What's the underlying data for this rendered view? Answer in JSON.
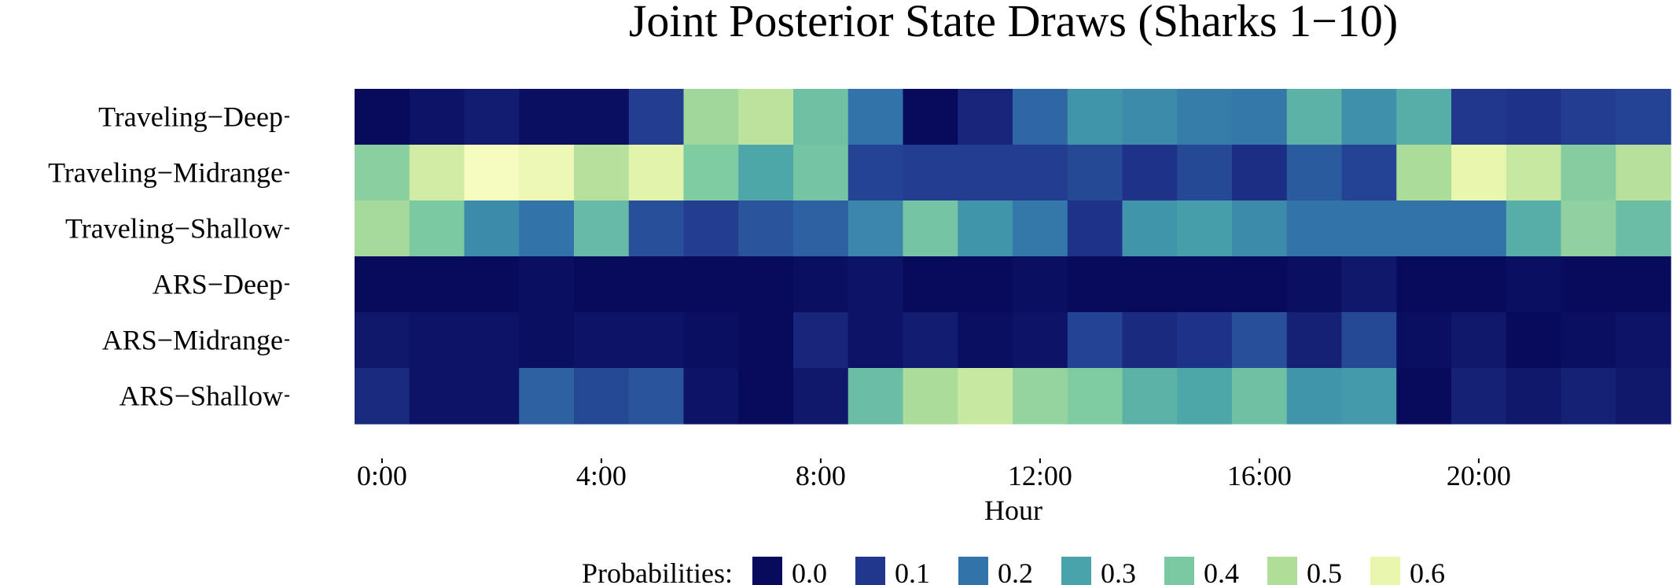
{
  "chart_data": {
    "type": "heatmap",
    "title": "Joint Posterior State Draws (Sharks 1−10)",
    "xlabel": "Hour",
    "ylabel": "",
    "rows": [
      "Traveling−Deep",
      "Traveling−Midrange",
      "Traveling−Shallow",
      "ARS−Deep",
      "ARS−Midrange",
      "ARS−Shallow"
    ],
    "hours": [
      0,
      1,
      2,
      3,
      4,
      5,
      6,
      7,
      8,
      9,
      10,
      11,
      12,
      13,
      14,
      15,
      16,
      17,
      18,
      19,
      20,
      21,
      22,
      23
    ],
    "x_ticks": [
      {
        "hour": 0,
        "label": "0:00"
      },
      {
        "hour": 4,
        "label": "4:00"
      },
      {
        "hour": 8,
        "label": "8:00"
      },
      {
        "hour": 12,
        "label": "12:00"
      },
      {
        "hour": 16,
        "label": "16:00"
      },
      {
        "hour": 20,
        "label": "20:00"
      }
    ],
    "values": [
      [
        0.0,
        0.02,
        0.04,
        0.01,
        0.01,
        0.11,
        0.47,
        0.52,
        0.38,
        0.2,
        0.0,
        0.06,
        0.18,
        0.27,
        0.25,
        0.22,
        0.21,
        0.34,
        0.26,
        0.33,
        0.1,
        0.09,
        0.11,
        0.12
      ],
      [
        0.43,
        0.56,
        0.63,
        0.61,
        0.51,
        0.59,
        0.41,
        0.31,
        0.39,
        0.12,
        0.11,
        0.11,
        0.11,
        0.13,
        0.09,
        0.13,
        0.08,
        0.16,
        0.12,
        0.49,
        0.6,
        0.54,
        0.42,
        0.51
      ],
      [
        0.48,
        0.4,
        0.25,
        0.2,
        0.36,
        0.14,
        0.11,
        0.15,
        0.17,
        0.24,
        0.39,
        0.27,
        0.21,
        0.09,
        0.27,
        0.29,
        0.25,
        0.2,
        0.2,
        0.2,
        0.2,
        0.33,
        0.44,
        0.37
      ],
      [
        0.0,
        0.0,
        0.0,
        0.01,
        0.0,
        0.0,
        0.0,
        0.0,
        0.01,
        0.02,
        0.0,
        0.0,
        0.01,
        0.0,
        0.0,
        0.0,
        0.0,
        0.01,
        0.03,
        0.0,
        0.0,
        0.01,
        0.0,
        0.0
      ],
      [
        0.03,
        0.02,
        0.02,
        0.01,
        0.02,
        0.02,
        0.01,
        0.0,
        0.06,
        0.02,
        0.04,
        0.01,
        0.02,
        0.12,
        0.07,
        0.09,
        0.14,
        0.05,
        0.13,
        0.01,
        0.03,
        0.0,
        0.01,
        0.02
      ],
      [
        0.07,
        0.02,
        0.02,
        0.17,
        0.13,
        0.15,
        0.02,
        0.0,
        0.03,
        0.37,
        0.49,
        0.54,
        0.45,
        0.41,
        0.34,
        0.31,
        0.38,
        0.27,
        0.28,
        0.0,
        0.05,
        0.03,
        0.05,
        0.03
      ]
    ],
    "color_scale": {
      "min": 0.0,
      "max": 0.65,
      "palette": "YlGnBu"
    },
    "legend": {
      "title": "Probabilities:",
      "position": "bottom",
      "items": [
        {
          "label": "0.0",
          "value": 0.0
        },
        {
          "label": "0.1",
          "value": 0.1
        },
        {
          "label": "0.2",
          "value": 0.2
        },
        {
          "label": "0.3",
          "value": 0.3
        },
        {
          "label": "0.4",
          "value": 0.4
        },
        {
          "label": "0.5",
          "value": 0.5
        },
        {
          "label": "0.6",
          "value": 0.6
        }
      ]
    }
  }
}
